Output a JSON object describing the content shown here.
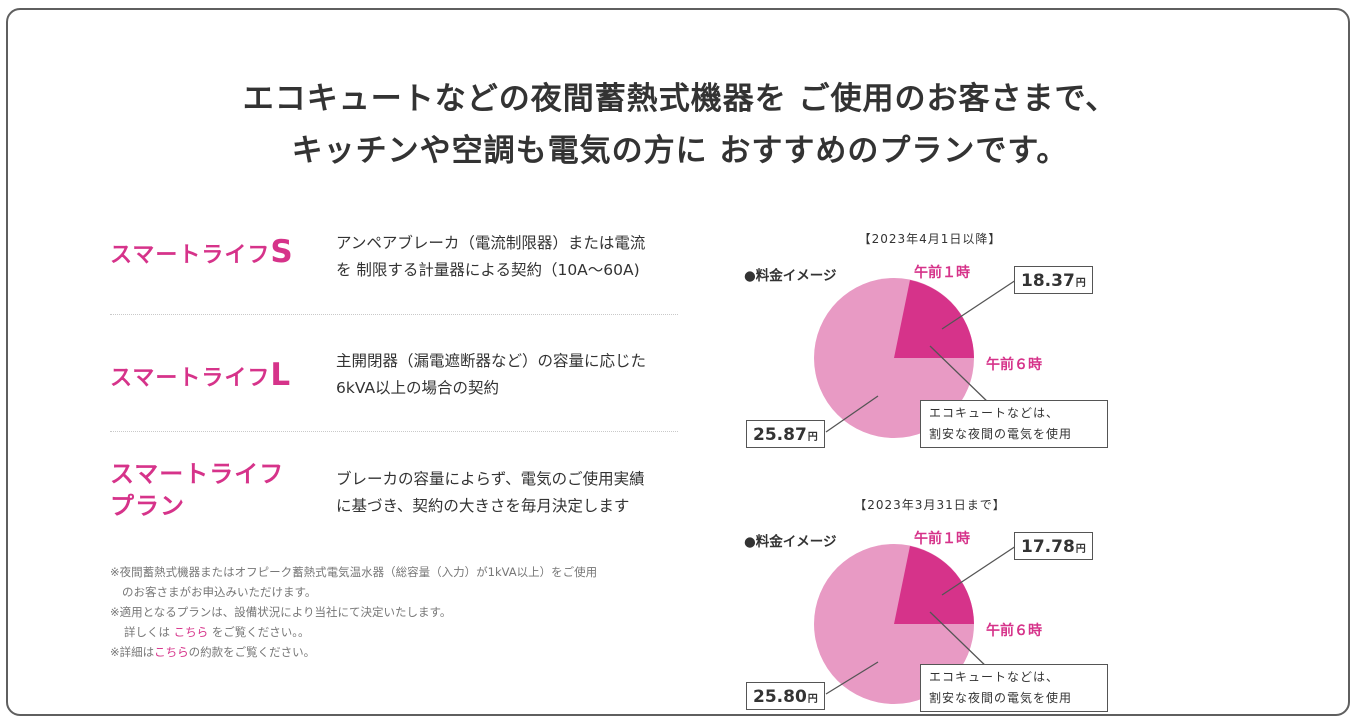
{
  "headline": {
    "line1": "エコキュートなどの夜間蓄熱式機器を ご使用のお客さまで、",
    "line2": "キッチンや空調も電気の方に おすすめのプランです。"
  },
  "plans": [
    {
      "name": "スマートライフ",
      "suffix": "S",
      "desc_line1": "アンペアブレーカ（電流制限器）または電流",
      "desc_line2": "を 制限する計量器による契約（10A～60A)"
    },
    {
      "name": "スマートライフ",
      "suffix": "L",
      "desc_line1": "主開閉器（漏電遮断器など）の容量に応じた",
      "desc_line2": "6kVA以上の場合の契約"
    },
    {
      "name_line1": "スマートライフ",
      "name_line2": "プラン",
      "desc_line1": "ブレーカの容量によらず、電気のご使用実績",
      "desc_line2": "に基づき、契約の大きさを毎月決定します"
    }
  ],
  "notes": {
    "n1_line1": "※夜間蓄熱式機器またはオフピーク蓄熱式電気温水器（総容量（入力）が1kVA以上）をご使用",
    "n1_line2": "のお客さまがお申込みいただけます。",
    "n2_line1": "※適用となるプランは、設備状況により当社にて決定いたします。",
    "n2_line2_pre": "詳しくは",
    "n2_link": "こちら",
    "n2_line2_post": "をご覧ください。。",
    "n3_pre": "※詳細は",
    "n3_link": "こちら",
    "n3_post": "の約款をご覧ください。"
  },
  "charts": [
    {
      "date": "【2023年4月1日以降】",
      "image_label": "●料金イメージ",
      "am1": "午前１時",
      "am6": "午前６時",
      "night_price": "18.37",
      "day_price": "25.87",
      "unit": "円",
      "eco_line1": "エコキュートなどは、",
      "eco_line2": "割安な夜間の電気を使用"
    },
    {
      "date": "【2023年3月31日まで】",
      "image_label": "●料金イメージ",
      "am1": "午前１時",
      "am6": "午前６時",
      "night_price": "17.78",
      "day_price": "25.80",
      "unit": "円",
      "eco_line1": "エコキュートなどは、",
      "eco_line2": "割安な夜間の電気を使用"
    }
  ],
  "colors": {
    "accent": "#d6338a",
    "pie_light": "#e89ac4",
    "pie_dark": "#d6338a"
  }
}
